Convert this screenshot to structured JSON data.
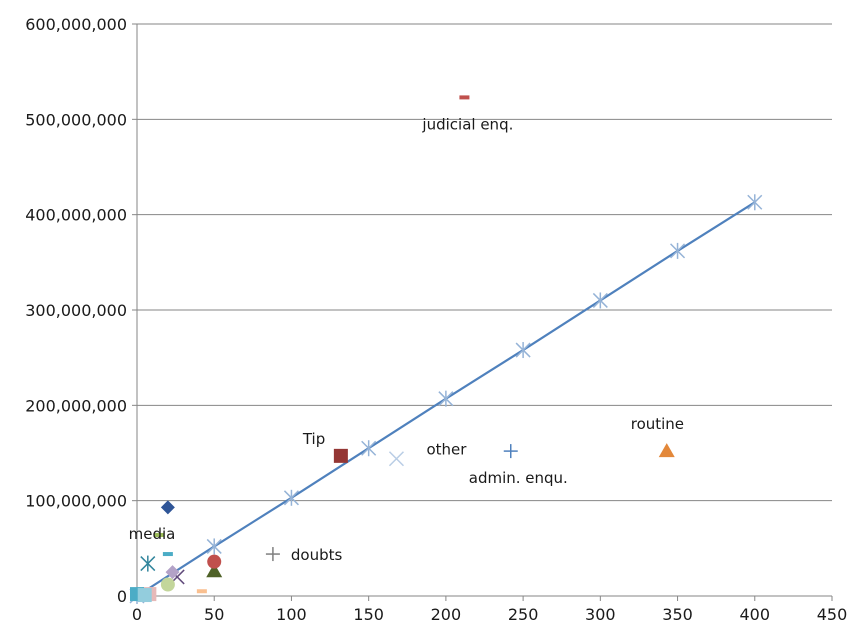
{
  "chart_data": {
    "type": "scatter",
    "title": "",
    "xlabel": "",
    "ylabel": "",
    "xlim": [
      0,
      450
    ],
    "ylim": [
      0,
      600000000
    ],
    "x_ticks": [
      0,
      50,
      100,
      150,
      200,
      250,
      300,
      350,
      400,
      450
    ],
    "y_ticks": [
      0,
      100000000,
      200000000,
      300000000,
      400000000,
      500000000,
      600000000
    ],
    "y_tick_labels": [
      "0",
      "100,000,000",
      "200,000,000",
      "300,000,000",
      "400,000,000",
      "500,000,000",
      "600,000,000"
    ],
    "grid": "horizontal",
    "legend": "none",
    "points": [
      {
        "x": 20,
        "y": 93000000,
        "marker": "diamond",
        "color": "#2f5597",
        "label": ""
      },
      {
        "x": 132,
        "y": 147000000,
        "marker": "square",
        "color": "#943634",
        "label": "Tip"
      },
      {
        "x": 50,
        "y": 26000000,
        "marker": "triangle",
        "color": "#4f6228",
        "label": ""
      },
      {
        "x": 26,
        "y": 20000000,
        "marker": "x",
        "color": "#604a7b",
        "label": ""
      },
      {
        "x": 7,
        "y": 34000000,
        "marker": "star",
        "color": "#31859c",
        "label": ""
      },
      {
        "x": 50,
        "y": 36000000,
        "marker": "circle",
        "color": "#c0504d",
        "label": ""
      },
      {
        "x": 242,
        "y": 152000000,
        "marker": "plus",
        "color": "#4f81bd",
        "label": "admin. enqu."
      },
      {
        "x": 212,
        "y": 523000000,
        "marker": "dash",
        "color": "#c0504d",
        "label": "judicial enq."
      },
      {
        "x": 14,
        "y": 64000000,
        "marker": "dash",
        "color": "#9bbb59",
        "label": "media"
      },
      {
        "x": 168,
        "y": 144000000,
        "marker": "x",
        "color": "#b9cde5",
        "label": "other"
      },
      {
        "x": 343,
        "y": 152000000,
        "marker": "triangle",
        "color": "#e3883a",
        "label": "routine"
      },
      {
        "x": 88,
        "y": 44000000,
        "marker": "plus",
        "color": "#7f7f7f",
        "label": "doubts"
      },
      {
        "x": 20,
        "y": 12000000,
        "marker": "circle",
        "color": "#c3d69b",
        "label": ""
      },
      {
        "x": 23,
        "y": 25000000,
        "marker": "diamond",
        "color": "#b3a2c7",
        "label": ""
      },
      {
        "x": 20,
        "y": 44000000,
        "marker": "dash",
        "color": "#4bacc6",
        "label": ""
      },
      {
        "x": 42,
        "y": 5000000,
        "marker": "dash",
        "color": "#fac090",
        "label": ""
      },
      {
        "x": 8,
        "y": 2000000,
        "marker": "square",
        "color": "#e6b9b8",
        "label": ""
      },
      {
        "x": 0,
        "y": 2000000,
        "marker": "square",
        "color": "#4bacc6",
        "label": ""
      },
      {
        "x": 5,
        "y": 1000000,
        "marker": "square",
        "color": "#93cddd",
        "label": ""
      }
    ],
    "trend_series": {
      "marker": "star",
      "color": "#4f81bd",
      "marker_color": "#95b3d7",
      "points": [
        {
          "x": 0,
          "y": 0
        },
        {
          "x": 50,
          "y": 52000000
        },
        {
          "x": 100,
          "y": 103000000
        },
        {
          "x": 150,
          "y": 155000000
        },
        {
          "x": 200,
          "y": 207000000
        },
        {
          "x": 250,
          "y": 258000000
        },
        {
          "x": 300,
          "y": 310000000
        },
        {
          "x": 350,
          "y": 362000000
        },
        {
          "x": 400,
          "y": 413000000
        }
      ]
    }
  }
}
